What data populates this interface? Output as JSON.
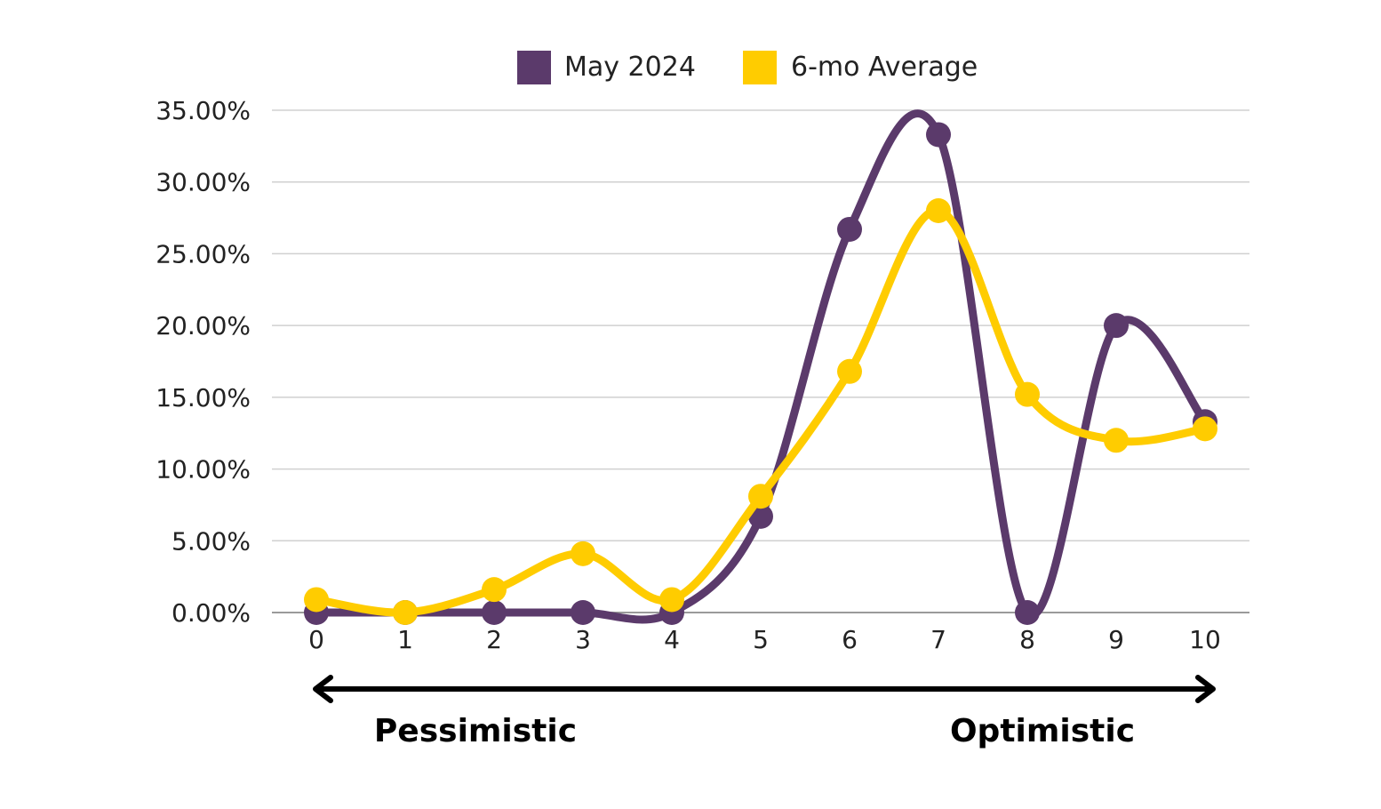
{
  "chart_data": {
    "type": "line",
    "title": "",
    "xlabel": "",
    "ylabel": "",
    "x": [
      0,
      1,
      2,
      3,
      4,
      5,
      6,
      7,
      8,
      9,
      10
    ],
    "x_tick_labels": [
      "0",
      "1",
      "2",
      "3",
      "4",
      "5",
      "6",
      "7",
      "8",
      "9",
      "10"
    ],
    "ylim": [
      0,
      35
    ],
    "y_ticks": [
      0,
      5,
      10,
      15,
      20,
      25,
      30,
      35
    ],
    "y_tick_labels": [
      "0.00%",
      "5.00%",
      "10.00%",
      "15.00%",
      "20.00%",
      "25.00%",
      "30.00%",
      "35.00%"
    ],
    "grid": "horizontal",
    "legend_position": "top-center",
    "smooth": true,
    "series": [
      {
        "name": "May 2024",
        "color": "#5b3a6b",
        "values": [
          0,
          0,
          0,
          0,
          0,
          6.7,
          26.7,
          33.3,
          0,
          20,
          13.3
        ]
      },
      {
        "name": "6-mo Average",
        "color": "#ffcc00",
        "values": [
          0.9,
          0,
          1.6,
          4.1,
          0.9,
          8.1,
          16.8,
          28.0,
          15.2,
          12.0,
          12.8
        ]
      }
    ],
    "annotations": {
      "left_label": "Pessimistic",
      "right_label": "Optimistic"
    }
  }
}
